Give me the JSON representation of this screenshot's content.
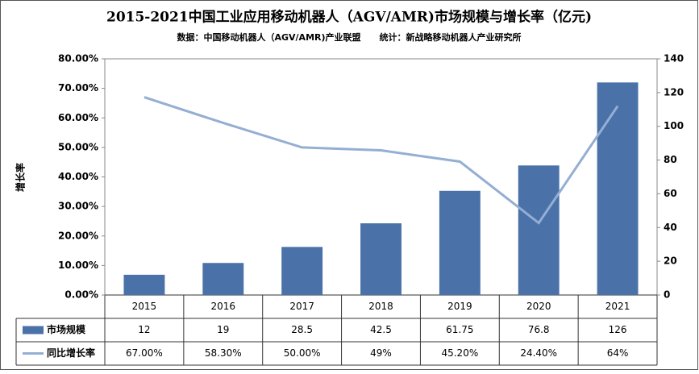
{
  "chart_data": {
    "type": "bar-line",
    "title": "2015-2021中国工业应用移动机器人（AGV/AMR)市场规模与增长率（亿元)",
    "subtitle": "数据：中国移动机器人（AGV/AMR)产业联盟      统计：新战略移动机器人产业研究所",
    "y_label": "增长率",
    "categories": [
      "2015",
      "2016",
      "2017",
      "2018",
      "2019",
      "2020",
      "2021"
    ],
    "series": [
      {
        "name": "市场规模",
        "type": "bar",
        "axis": "y2",
        "color": "#4a72a8",
        "values": [
          12,
          19,
          28.5,
          42.5,
          61.75,
          76.8,
          126
        ]
      },
      {
        "name": "同比增长率",
        "type": "line",
        "color": "#94aed4",
        "values": [
          67,
          58.3,
          50,
          49,
          45.2,
          24.4,
          64
        ],
        "value_labels": [
          "67.00%",
          "58.30%",
          "50.00%",
          "49%",
          "45.20%",
          "24.40%",
          "64%"
        ]
      }
    ],
    "ylim": [
      0,
      80
    ],
    "yticks": [
      {
        "value": 0,
        "label": "0.00%"
      },
      {
        "value": 10,
        "label": "10.00%"
      },
      {
        "value": 20,
        "label": "20.00%"
      },
      {
        "value": 30,
        "label": "30.00%"
      },
      {
        "value": 40,
        "label": "40.00%"
      },
      {
        "value": 50,
        "label": "50.00%"
      },
      {
        "value": 60,
        "label": "60.00%"
      },
      {
        "value": 70,
        "label": "70.00%"
      },
      {
        "value": 80,
        "label": "80.00%"
      }
    ],
    "y2lim": [
      0,
      140
    ],
    "y2ticks": [
      0,
      20,
      40,
      60,
      80,
      100,
      120,
      140
    ],
    "grid": false
  }
}
